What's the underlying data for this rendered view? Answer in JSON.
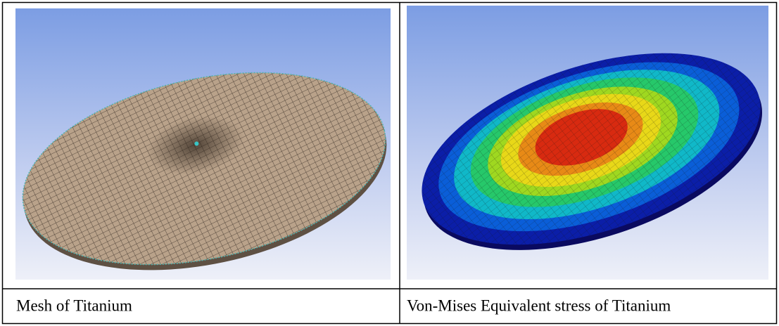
{
  "captions": [
    "Mesh of Titanium",
    "Von-Mises Equivalent stress of Titanium"
  ]
}
